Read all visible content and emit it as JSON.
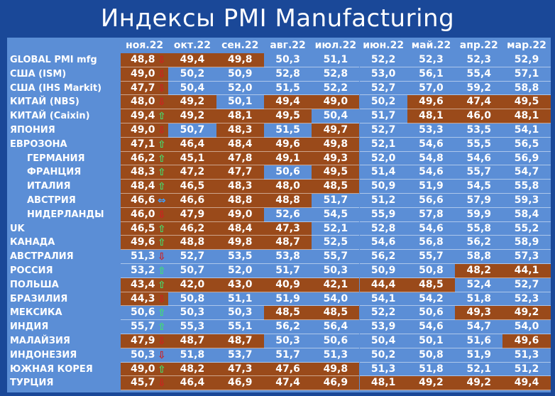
{
  "chart_data": {
    "type": "table",
    "title": "Индексы PMI Manufacturing",
    "columns": [
      "ноя.22",
      "окт.22",
      "сен.22",
      "авг.22",
      "июл.22",
      "июн.22",
      "май.22",
      "апр.22",
      "мар.22"
    ],
    "rows": [
      {
        "label": "GLOBAL PMI mfg",
        "indent": false,
        "trend": "down",
        "values": [
          "48,8",
          "49,4",
          "49,8",
          "50,3",
          "51,1",
          "52,2",
          "52,3",
          "52,3",
          "52,9"
        ]
      },
      {
        "label": "США (ISM)",
        "indent": false,
        "trend": "down",
        "values": [
          "49,0",
          "50,2",
          "50,9",
          "52,8",
          "52,8",
          "53,0",
          "56,1",
          "55,4",
          "57,1"
        ]
      },
      {
        "label": "США (IHS Markit)",
        "indent": false,
        "trend": "down",
        "values": [
          "47,7",
          "50,4",
          "52,0",
          "51,5",
          "52,2",
          "52,7",
          "57,0",
          "59,2",
          "58,8"
        ]
      },
      {
        "label": "КИТАЙ (NBS)",
        "indent": false,
        "trend": "down",
        "values": [
          "48,0",
          "49,2",
          "50,1",
          "49,4",
          "49,0",
          "50,2",
          "49,6",
          "47,4",
          "49,5"
        ]
      },
      {
        "label": "КИТАЙ (Caixin)",
        "indent": false,
        "trend": "up",
        "values": [
          "49,4",
          "49,2",
          "48,1",
          "49,5",
          "50,4",
          "51,7",
          "48,1",
          "46,0",
          "48,1"
        ]
      },
      {
        "label": "ЯПОНИЯ",
        "indent": false,
        "trend": "down",
        "values": [
          "49,0",
          "50,7",
          "48,3",
          "51,5",
          "49,7",
          "52,7",
          "53,3",
          "53,5",
          "54,1"
        ]
      },
      {
        "label": "ЕВРОЗОНА",
        "indent": false,
        "trend": "up",
        "values": [
          "47,1",
          "46,4",
          "48,4",
          "49,6",
          "49,8",
          "52,1",
          "54,6",
          "55,5",
          "56,5"
        ]
      },
      {
        "label": "ГЕРМАНИЯ",
        "indent": true,
        "trend": "up",
        "values": [
          "46,2",
          "45,1",
          "47,8",
          "49,1",
          "49,3",
          "52,0",
          "54,8",
          "54,6",
          "56,9"
        ]
      },
      {
        "label": "ФРАНЦИЯ",
        "indent": true,
        "trend": "up",
        "values": [
          "48,3",
          "47,2",
          "47,7",
          "50,6",
          "49,5",
          "51,4",
          "54,6",
          "55,7",
          "54,7"
        ]
      },
      {
        "label": "ИТАЛИЯ",
        "indent": true,
        "trend": "up",
        "values": [
          "48,4",
          "46,5",
          "48,3",
          "48,0",
          "48,5",
          "50,9",
          "51,9",
          "54,5",
          "55,8"
        ]
      },
      {
        "label": "АВСТРИЯ",
        "indent": true,
        "trend": "flat",
        "values": [
          "46,6",
          "46,6",
          "48,8",
          "48,8",
          "51,7",
          "51,2",
          "56,6",
          "57,9",
          "59,3"
        ]
      },
      {
        "label": "НИДЕРЛАНДЫ",
        "indent": true,
        "trend": "down",
        "values": [
          "46,0",
          "47,9",
          "49,0",
          "52,6",
          "54,5",
          "55,9",
          "57,8",
          "59,9",
          "58,4"
        ]
      },
      {
        "label": "UK",
        "indent": false,
        "trend": "up",
        "values": [
          "46,5",
          "46,2",
          "48,4",
          "47,3",
          "52,1",
          "52,8",
          "54,6",
          "55,8",
          "55,2"
        ]
      },
      {
        "label": "КАНАДА",
        "indent": false,
        "trend": "up",
        "values": [
          "49,6",
          "48,8",
          "49,8",
          "48,7",
          "52,5",
          "54,6",
          "56,8",
          "56,2",
          "58,9"
        ]
      },
      {
        "label": "АВСТРАЛИЯ",
        "indent": false,
        "trend": "down",
        "values": [
          "51,3",
          "52,7",
          "53,5",
          "53,8",
          "55,7",
          "56,2",
          "55,7",
          "58,8",
          "57,3"
        ]
      },
      {
        "label": "РОССИЯ",
        "indent": false,
        "trend": "up",
        "values": [
          "53,2",
          "50,7",
          "52,0",
          "51,7",
          "50,3",
          "50,9",
          "50,8",
          "48,2",
          "44,1"
        ]
      },
      {
        "label": "ПОЛЬША",
        "indent": false,
        "trend": "up",
        "values": [
          "43,4",
          "42,0",
          "43,0",
          "40,9",
          "42,1",
          "44,4",
          "48,5",
          "52,4",
          "52,7"
        ]
      },
      {
        "label": "БРАЗИЛИЯ",
        "indent": false,
        "trend": "down",
        "values": [
          "44,3",
          "50,8",
          "51,1",
          "51,9",
          "54,0",
          "54,1",
          "54,2",
          "51,8",
          "52,3"
        ]
      },
      {
        "label": "МЕКСИКА",
        "indent": false,
        "trend": "up",
        "values": [
          "50,6",
          "50,3",
          "50,3",
          "48,5",
          "48,5",
          "52,2",
          "50,6",
          "49,3",
          "49,2"
        ]
      },
      {
        "label": "ИНДИЯ",
        "indent": false,
        "trend": "up",
        "values": [
          "55,7",
          "55,3",
          "55,1",
          "56,2",
          "56,4",
          "53,9",
          "54,6",
          "54,7",
          "54,0"
        ]
      },
      {
        "label": "МАЛАЙЗИЯ",
        "indent": false,
        "trend": "down",
        "values": [
          "47,9",
          "48,7",
          "48,7",
          "50,3",
          "50,6",
          "50,4",
          "50,1",
          "51,6",
          "49,6"
        ]
      },
      {
        "label": "ИНДОНЕЗИЯ",
        "indent": false,
        "trend": "down",
        "values": [
          "50,3",
          "51,8",
          "53,7",
          "51,7",
          "51,3",
          "50,2",
          "50,8",
          "51,9",
          "51,3"
        ]
      },
      {
        "label": "ЮЖНАЯ КОРЕЯ",
        "indent": false,
        "trend": "up",
        "values": [
          "49,0",
          "48,2",
          "47,3",
          "47,6",
          "49,8",
          "51,3",
          "51,8",
          "52,1",
          "51,2"
        ]
      },
      {
        "label": "ТУРЦИЯ",
        "indent": false,
        "trend": "down",
        "values": [
          "45,7",
          "46,4",
          "46,9",
          "47,4",
          "46,9",
          "48,1",
          "49,2",
          "49,2",
          "49,4"
        ]
      }
    ],
    "threshold": 50,
    "highlight_color": "#9a4a1a",
    "cell_color": "#5b8ed6",
    "background_color": "#1a4898",
    "icons": {
      "up": "up-arrow-icon",
      "down": "down-arrow-icon",
      "flat": "left-right-arrow-icon"
    }
  }
}
